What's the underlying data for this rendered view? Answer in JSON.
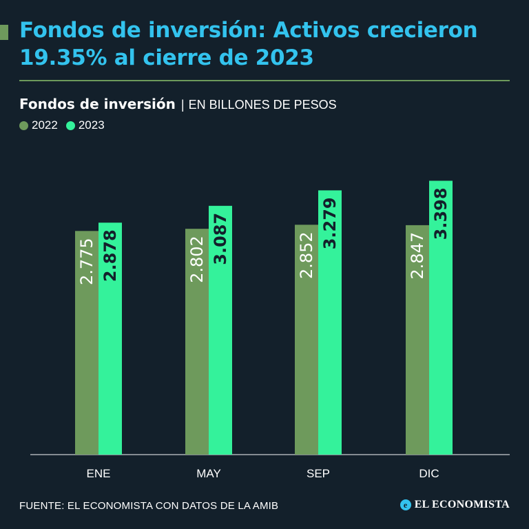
{
  "headline": "Fondos de inversión: Activos crecieron 19.35% al cierre de 2023",
  "subtitle": {
    "main": "Fondos de inversión",
    "separator": "|",
    "unit": "EN BILLONES DE PESOS"
  },
  "colors": {
    "background": "#13202b",
    "headline": "#33c3ee",
    "series_2022": "#6e9a5c",
    "series_2023": "#34f29b",
    "rule": "#6e9a5c"
  },
  "chart_data": {
    "type": "bar",
    "title": "Fondos de inversión",
    "ylabel": "EN BILLONES DE PESOS",
    "xlabel": "",
    "categories": [
      "ENE",
      "MAY",
      "SEP",
      "DIC"
    ],
    "series": [
      {
        "name": "2022",
        "values": [
          2.775,
          2.802,
          2.852,
          2.847
        ],
        "labels": [
          "2.775",
          "2.802",
          "2.852",
          "2.847"
        ]
      },
      {
        "name": "2023",
        "values": [
          2.878,
          3.087,
          3.279,
          3.398
        ],
        "labels": [
          "2.878",
          "3.087",
          "3.279",
          "3.398"
        ]
      }
    ],
    "ylim": [
      0,
      3.55
    ],
    "grid": false,
    "legend": "top-left"
  },
  "footer": {
    "source": "FUENTE: EL ECONOMISTA CON DATOS DE LA AMIB",
    "brand": "EL ECONOMISTA",
    "brand_mark": "e"
  }
}
